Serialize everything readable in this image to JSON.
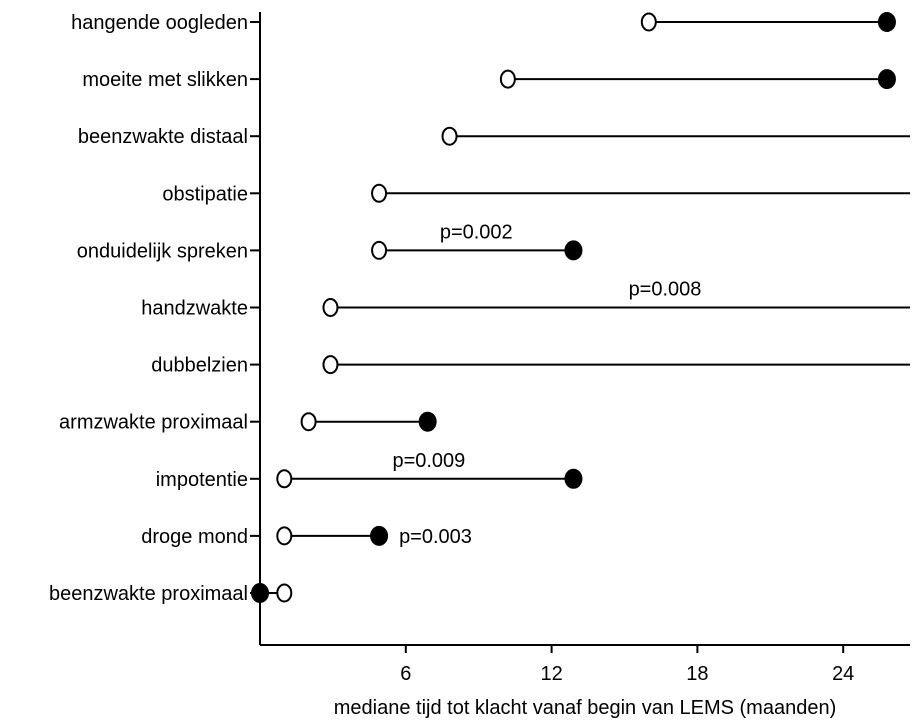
{
  "chart_data": {
    "type": "dumbbell",
    "xlabel": "mediane tijd tot klacht vanaf begin van LEMS (maanden)",
    "ylabel": "",
    "xlim": [
      0,
      27.5
    ],
    "xticks": [
      6,
      12,
      18,
      24
    ],
    "grid": false,
    "legend": "none",
    "series": [
      {
        "category": "hangende oogleden",
        "open": 16,
        "filled": 25.8,
        "filled_marker": true,
        "pvalue": ""
      },
      {
        "category": "moeite met slikken",
        "open": 10.2,
        "filled": 25.8,
        "filled_marker": true,
        "pvalue": ""
      },
      {
        "category": "beenzwakte distaal",
        "open": 7.8,
        "filled": 27.5,
        "filled_marker": false,
        "pvalue": ""
      },
      {
        "category": "obstipatie",
        "open": 4.9,
        "filled": 27.5,
        "filled_marker": false,
        "pvalue": ""
      },
      {
        "category": "onduidelijk spreken",
        "open": 4.9,
        "filled": 12.9,
        "filled_marker": true,
        "pvalue": "p=0.002"
      },
      {
        "category": "handzwakte",
        "open": 2.9,
        "filled": 27.5,
        "filled_marker": false,
        "pvalue": "p=0.008"
      },
      {
        "category": "dubbelzien",
        "open": 2.9,
        "filled": 27.5,
        "filled_marker": false,
        "pvalue": ""
      },
      {
        "category": "armzwakte proximaal",
        "open": 2.0,
        "filled": 6.9,
        "filled_marker": true,
        "pvalue": ""
      },
      {
        "category": "impotentie",
        "open": 1.0,
        "filled": 12.9,
        "filled_marker": true,
        "pvalue": "p=0.009"
      },
      {
        "category": "droge mond",
        "open": 1.0,
        "filled": 4.9,
        "filled_marker": true,
        "pvalue": "p=0.003"
      },
      {
        "category": "beenzwakte proximaal",
        "open": 1.0,
        "filled": 0,
        "filled_marker": true,
        "pvalue": ""
      }
    ]
  }
}
